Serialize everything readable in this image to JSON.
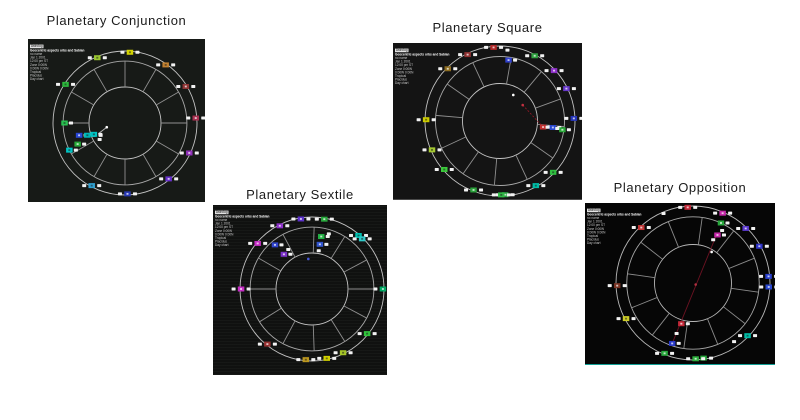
{
  "page": {
    "background": "#ffffff"
  },
  "charts": [
    {
      "id": "conjunction",
      "title": "Planetary Conjunction",
      "legend": {
        "chip": "Astrolog",
        "info_line": "Geocentric aspects orbs and Sabian",
        "lines": [
          "no name",
          "Jan 1 2001",
          "12:00 pm ST",
          "Zone 0:00W",
          "0:00W 0:00N",
          "Tropical",
          "Placidus",
          "Day chart"
        ]
      },
      "colors": {
        "bg": "#171a17",
        "ring": "#c4c4c4",
        "spoke": "#909090",
        "bottom_line": null
      },
      "wheel": {
        "spokes": [
          0,
          30,
          60,
          90,
          120,
          150,
          180,
          210,
          240,
          270,
          300,
          330
        ],
        "band_markers": [
          {
            "a": 4,
            "c": "#d4d400"
          },
          {
            "a": 35,
            "c": "#c08030"
          },
          {
            "a": 59,
            "c": "#8e3434"
          },
          {
            "a": 86,
            "c": "#a83050"
          },
          {
            "a": 115,
            "c": "#9030b8"
          },
          {
            "a": 142,
            "c": "#6830cc"
          },
          {
            "a": 178,
            "c": "#2838b4"
          },
          {
            "a": 208,
            "c": "#30a0d0"
          },
          {
            "a": 303,
            "c": "#2cb83c"
          },
          {
            "a": 337,
            "c": "#9cc832"
          }
        ],
        "inner_markers": [
          {
            "a": 270,
            "rf": 0.84,
            "c": "#28c050"
          },
          {
            "a": 244,
            "rf": 0.86,
            "c": "#00c4c4"
          },
          {
            "a": 246,
            "rf": 0.72,
            "c": "#28a838"
          },
          {
            "a": 255,
            "rf": 0.66,
            "c": "#2846d4"
          },
          {
            "a": 252,
            "rf": 0.55,
            "c": "#00b8b8"
          },
          {
            "a": 250,
            "rf": 0.46,
            "c": "#00c4c4"
          }
        ],
        "tick_labels": [
          {
            "a": 237,
            "rf": 0.42
          },
          {
            "a": 243,
            "rf": 0.38
          }
        ],
        "dots": [
          {
            "a": 257,
            "rf": 0.26,
            "c": "#ffffff"
          }
        ],
        "aspect_lines": [
          {
            "a1": 257,
            "rf1": 0.26,
            "a2": 248,
            "rf2": 0.4,
            "c": "#bbbbbb",
            "dash": false
          }
        ]
      }
    },
    {
      "id": "square",
      "title": "Planetary Square",
      "legend": {
        "chip": "Astrolog",
        "info_line": "Geocentric aspects orbs and Sabian",
        "lines": [
          "no name",
          "Jan 1 2001",
          "12:00 pm ST",
          "Zone 0:00W",
          "0:00W 0:00N",
          "Tropical",
          "Placidus",
          "Day chart"
        ]
      },
      "colors": {
        "bg": "#141414",
        "ring": "#c4c4c4",
        "spoke": "#909090",
        "bottom_line": "#4a4a4a"
      },
      "wheel": {
        "spokes": [
          10,
          40,
          70,
          95,
          125,
          155,
          185,
          215,
          245,
          275,
          305,
          335
        ],
        "band_markers": [
          {
            "a": 355,
            "c": "#b02828"
          },
          {
            "a": 28,
            "c": "#30a040"
          },
          {
            "a": 47,
            "c": "#8c30c8"
          },
          {
            "a": 64,
            "c": "#6838cc"
          },
          {
            "a": 88,
            "c": "#2534b8"
          },
          {
            "a": 134,
            "c": "#30c040"
          },
          {
            "a": 151,
            "c": "#00bca6"
          },
          {
            "a": 176,
            "c": "#28a040"
          },
          {
            "a": 179,
            "c": "#30b846"
          },
          {
            "a": 201,
            "c": "#2ca23c"
          },
          {
            "a": 229,
            "c": "#3ccc3c"
          },
          {
            "a": 247,
            "c": "#a4c830"
          },
          {
            "a": 271,
            "c": "#cccc00"
          },
          {
            "a": 315,
            "c": "#8c6c20"
          },
          {
            "a": 334,
            "c": "#8e3030"
          }
        ],
        "inner_markers": [
          {
            "a": 8,
            "rf": 0.82,
            "c": "#3040cc"
          },
          {
            "a": 98,
            "rf": 0.58,
            "c": "#c03030"
          },
          {
            "a": 97,
            "rf": 0.71,
            "c": "#2a48d0"
          },
          {
            "a": 98,
            "rf": 0.84,
            "c": "#28a838"
          }
        ],
        "tick_labels": [
          {
            "a": 6,
            "rf": 0.95
          },
          {
            "a": 97.5,
            "rf": 0.64
          },
          {
            "a": 97.5,
            "rf": 0.77
          }
        ],
        "dots": [
          {
            "a": 27,
            "rf": 0.39,
            "c": "#ffffff"
          },
          {
            "a": 55,
            "rf": 0.37,
            "c": "#c03040"
          }
        ],
        "aspect_lines": [
          {
            "a1": 55,
            "rf1": 0.37,
            "a2": 98,
            "rf2": 0.58,
            "c": "#8a1824",
            "dash": true
          }
        ]
      }
    },
    {
      "id": "sextile",
      "title": "Planetary Sextile",
      "legend": {
        "chip": "Astrolog",
        "info_line": "Geocentric aspects orbs and Sabian",
        "lines": [
          "no name",
          "Jan 1 2001",
          "12:00 pm ST",
          "Zone 0:00W",
          "0:00W 0:00N",
          "Tropical",
          "Placidus",
          "Day chart"
        ]
      },
      "colors": {
        "bg": "#111211",
        "ring": "#c4c4c4",
        "spoke": "#909090",
        "bottom_line": null
      },
      "wheel": {
        "spokes": [
          2,
          32,
          62,
          90,
          118,
          148,
          178,
          208,
          238,
          270,
          300,
          332
        ],
        "band_markers": [
          {
            "a": 351,
            "c": "#5a30c8"
          },
          {
            "a": 10,
            "c": "#28a83c"
          },
          {
            "a": 41,
            "c": "#00c0b0"
          },
          {
            "a": 45,
            "c": "#30c8c8"
          },
          {
            "a": 90,
            "c": "#00a862"
          },
          {
            "a": 129,
            "c": "#30c43c"
          },
          {
            "a": 154,
            "c": "#a6c628"
          },
          {
            "a": 168,
            "c": "#d0d000"
          },
          {
            "a": 185,
            "c": "#bc9820"
          },
          {
            "a": 219,
            "c": "#963030"
          },
          {
            "a": 270,
            "c": "#c42cc4"
          },
          {
            "a": 310,
            "c": "#c42cc4"
          },
          {
            "a": 333,
            "c": "#8c30c8"
          }
        ],
        "inner_markers": [
          {
            "a": 10,
            "rf": 0.74,
            "c": "#22b044"
          },
          {
            "a": 10,
            "rf": 0.63,
            "c": "#3054cc"
          },
          {
            "a": 320,
            "rf": 0.8,
            "c": "#3044cc"
          },
          {
            "a": 321,
            "rf": 0.62,
            "c": "#7a30c8"
          }
        ],
        "tick_labels": [
          {
            "a": 10,
            "rf": 0.54
          },
          {
            "a": 17,
            "rf": 0.8
          },
          {
            "a": 329,
            "rf": 0.64
          }
        ],
        "dots": [
          {
            "a": 353,
            "rf": 0.42,
            "c": "#4858d8"
          }
        ],
        "aspect_lines": []
      }
    },
    {
      "id": "opposition",
      "title": "Planetary Opposition",
      "legend": {
        "chip": "Astrolog",
        "info_line": "Geocentric aspects orbs and Sabian",
        "lines": [
          "no name",
          "Jan 1 2001",
          "12:00 pm ST",
          "Zone 0:00W",
          "0:00W 0:00N",
          "Tropical",
          "Placidus",
          "Day chart"
        ]
      },
      "colors": {
        "bg": "#060606",
        "ring": "#b8b8b8",
        "spoke": "#8a8a8a",
        "bottom_line": "#12a096"
      },
      "wheel": {
        "spokes": [
          8,
          38,
          68,
          98,
          128,
          158,
          188,
          218,
          248,
          278,
          308,
          338
        ],
        "band_markers": [
          {
            "a": 356,
            "c": "#c02838"
          },
          {
            "a": 23,
            "c": "#c428a8"
          },
          {
            "a": 44,
            "c": "#5a38cc"
          },
          {
            "a": 61,
            "c": "#3034c8"
          },
          {
            "a": 85,
            "c": "#2a40cc"
          },
          {
            "a": 93,
            "c": "#2a48d0"
          },
          {
            "a": 134,
            "c": "#00bca6"
          },
          {
            "a": 172,
            "c": "#28a83c"
          },
          {
            "a": 178,
            "c": "#30b040"
          },
          {
            "a": 202,
            "c": "#28a83c"
          },
          {
            "a": 242,
            "c": "#cccc28"
          },
          {
            "a": 268,
            "c": "#7a3424"
          },
          {
            "a": 317,
            "c": "#c03434"
          }
        ],
        "inner_markers": [
          {
            "a": 25,
            "rf": 0.86,
            "c": "#28a83c"
          },
          {
            "a": 27,
            "rf": 0.7,
            "c": "#c428a8"
          },
          {
            "a": 196,
            "rf": 0.55,
            "c": "#c42838"
          },
          {
            "a": 199,
            "rf": 0.83,
            "c": "#2838c8"
          }
        ],
        "tick_labels": [
          {
            "a": 25,
            "rf": 0.62
          },
          {
            "a": 29,
            "rf": 0.78
          },
          {
            "a": 198,
            "rf": 0.69
          },
          {
            "a": 337,
            "rf": 0.98
          },
          {
            "a": 145,
            "rf": 0.93
          }
        ],
        "dots": [
          {
            "a": 31,
            "rf": 0.47,
            "c": "#ffffff"
          },
          {
            "a": 120,
            "rf": 0.04,
            "c": "#b03040"
          }
        ],
        "aspect_lines": [
          {
            "a1": 26,
            "rf1": 0.7,
            "a2": 199,
            "rf2": 0.83,
            "c": "#6b1222",
            "dash": false
          }
        ]
      }
    }
  ]
}
